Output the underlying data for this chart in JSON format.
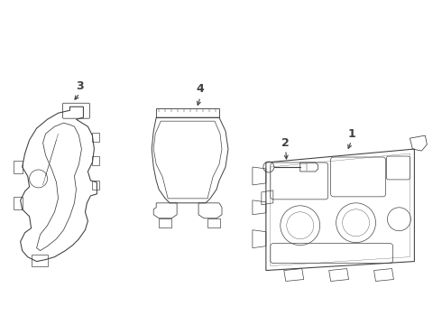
{
  "background_color": "#ffffff",
  "line_color": "#404040",
  "line_width": 0.7,
  "fig_width": 4.9,
  "fig_height": 3.6,
  "dpi": 100
}
